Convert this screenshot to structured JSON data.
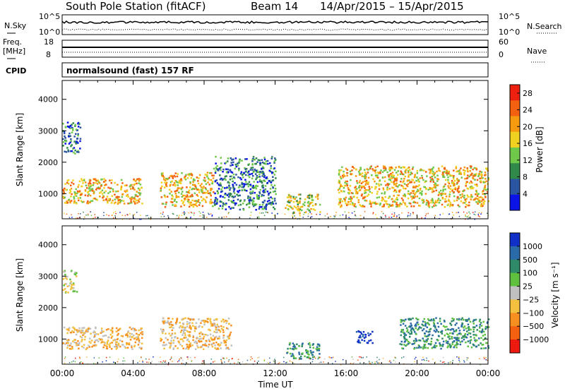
{
  "header": {
    "station": "South Pole Station (fitACF)",
    "beam": "Beam 14",
    "date_range": "14/Apr/2015 – 15/Apr/2015"
  },
  "param_panels": {
    "nsky_label": "N.Sky",
    "nsearch_label": "N.Search",
    "freq_label_1": "Freq.",
    "freq_label_2": "[MHz]",
    "nave_label": "Nave",
    "cpid_label": "CPID",
    "cpid_value": "normalsound (fast) 157 RF",
    "nsky_ticks": [
      "10^5",
      "10^0"
    ],
    "nsearch_ticks": [
      "10^5",
      "10^0"
    ],
    "freq_ticks": [
      "18",
      "8"
    ],
    "nave_ticks": [
      "60",
      "0"
    ]
  },
  "chart_data": [
    {
      "type": "heatmap",
      "panel": "power",
      "xlabel": "Time UT",
      "ylabel": "Slant Range [km]",
      "x_ticks": [
        "00:00",
        "04:00",
        "08:00",
        "12:00",
        "16:00",
        "20:00",
        "00:00"
      ],
      "x_range_hours": [
        0,
        24
      ],
      "y_ticks": [
        1000,
        2000,
        3000,
        4000
      ],
      "ylim": [
        200,
        4600
      ],
      "colorbar": {
        "label": "Power [dB]",
        "ticks": [
          4,
          8,
          12,
          16,
          20,
          24,
          28
        ],
        "range": [
          0,
          30
        ],
        "colors": [
          "#0a14e6",
          "#2a55a0",
          "#2f8a4a",
          "#6fc84a",
          "#f0d020",
          "#f79a10",
          "#f26010",
          "#ee2010"
        ]
      },
      "echo_regions": [
        {
          "t": [
            0.0,
            4.5
          ],
          "r": [
            700,
            1500
          ],
          "level": "high"
        },
        {
          "t": [
            0.0,
            1.0
          ],
          "r": [
            2300,
            3300
          ],
          "level": "low"
        },
        {
          "t": [
            5.5,
            8.5
          ],
          "r": [
            600,
            1700
          ],
          "level": "high"
        },
        {
          "t": [
            8.5,
            12.0
          ],
          "r": [
            500,
            2200
          ],
          "level": "low"
        },
        {
          "t": [
            12.5,
            14.5
          ],
          "r": [
            400,
            1000
          ],
          "level": "medium"
        },
        {
          "t": [
            15.5,
            24.0
          ],
          "r": [
            600,
            1900
          ],
          "level": "high"
        }
      ]
    },
    {
      "type": "heatmap",
      "panel": "velocity",
      "xlabel": "Time UT",
      "ylabel": "Slant Range [km]",
      "x_ticks": [
        "00:00",
        "04:00",
        "08:00",
        "12:00",
        "16:00",
        "20:00",
        "00:00"
      ],
      "x_range_hours": [
        0,
        24
      ],
      "y_ticks": [
        1000,
        2000,
        3000,
        4000
      ],
      "ylim": [
        200,
        4600
      ],
      "colorbar": {
        "label": "Velocity [m s⁻¹]",
        "ticks": [
          "1000",
          "500",
          "100",
          "25",
          "−25",
          "−100",
          "−500",
          "−1000"
        ],
        "colors": [
          "#1030c8",
          "#2a6aa8",
          "#2f8a6a",
          "#5fc040",
          "#c0c0c0",
          "#f3c040",
          "#f79020",
          "#f26010",
          "#ee1a10"
        ]
      },
      "echo_regions": [
        {
          "t": [
            0.0,
            4.5
          ],
          "r": [
            700,
            1400
          ],
          "velocity": "negative"
        },
        {
          "t": [
            0.0,
            0.8
          ],
          "r": [
            2500,
            3200
          ],
          "velocity": "near-zero"
        },
        {
          "t": [
            5.5,
            9.5
          ],
          "r": [
            700,
            1700
          ],
          "velocity": "negative"
        },
        {
          "t": [
            12.5,
            14.5
          ],
          "r": [
            400,
            900
          ],
          "velocity": "positive"
        },
        {
          "t": [
            16.5,
            17.5
          ],
          "r": [
            900,
            1300
          ],
          "velocity": "strong positive"
        },
        {
          "t": [
            19.0,
            24.0
          ],
          "r": [
            700,
            1700
          ],
          "velocity": "positive"
        }
      ]
    }
  ]
}
